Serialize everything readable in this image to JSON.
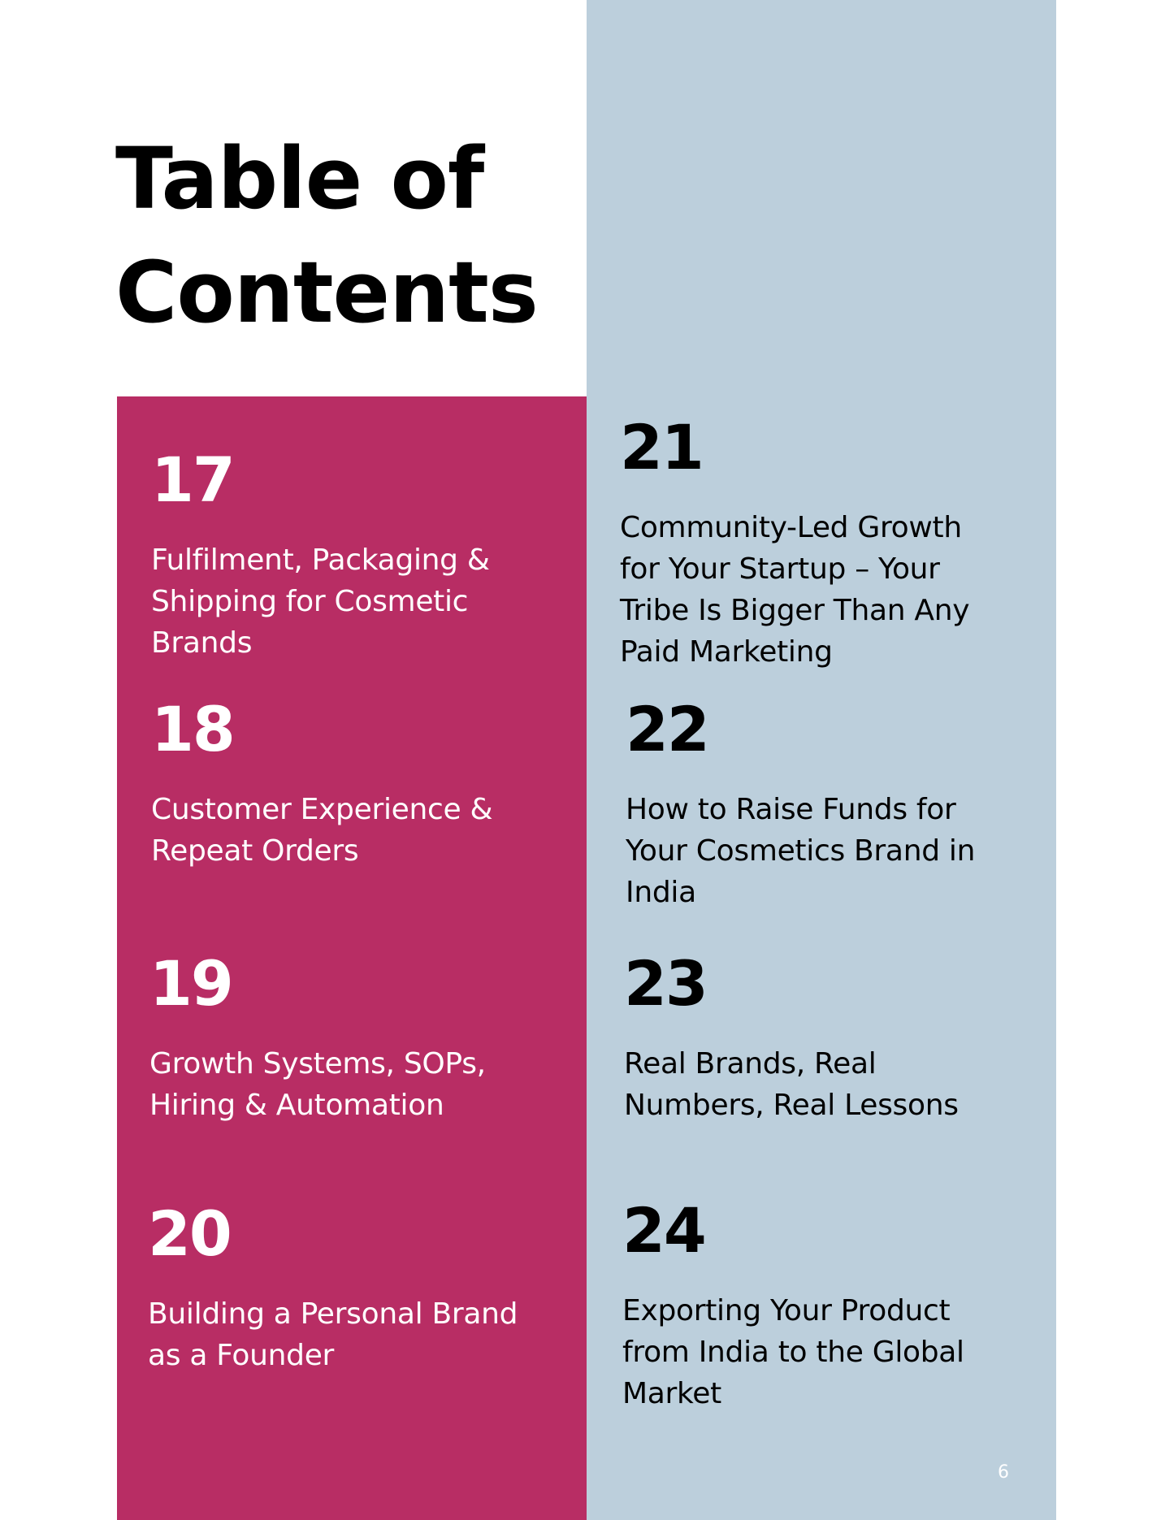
{
  "title": {
    "line1": "Table of",
    "line2": "Contents"
  },
  "entries_left": [
    {
      "number": "17",
      "label": "Fulfilment, Packaging & Shipping for Cosmetic Brands"
    },
    {
      "number": "18",
      "label": "Customer Experience & Repeat Orders"
    },
    {
      "number": "19",
      "label": "Growth Systems, SOPs, Hiring & Automation"
    },
    {
      "number": "20",
      "label": "Building a Personal Brand as a Founder"
    }
  ],
  "entries_right": [
    {
      "number": "21",
      "label": "Community-Led Growth for Your Startup – Your Tribe Is Bigger Than Any Paid Marketing"
    },
    {
      "number": "22",
      "label": "How to Raise Funds for Your Cosmetics Brand in India"
    },
    {
      "number": "23",
      "label": "Real Brands, Real Numbers, Real Lessons"
    },
    {
      "number": "24",
      "label": "Exporting Your Product from India to the Global Market"
    }
  ],
  "page_number": "6",
  "colors": {
    "pink_panel": "#b82d64",
    "blue_panel": "#bccfdc"
  }
}
